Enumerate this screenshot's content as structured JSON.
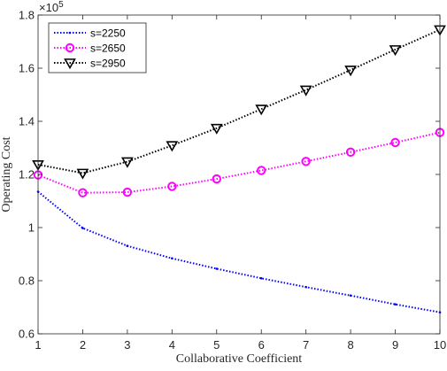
{
  "chart_data": {
    "type": "line",
    "xlabel": "Collaborative Coefficient",
    "ylabel": "Operating Cost",
    "exponent_base": "10",
    "exponent_power": "5",
    "x": [
      1,
      2,
      3,
      4,
      5,
      6,
      7,
      8,
      9,
      10
    ],
    "xlim": [
      1,
      10
    ],
    "ylim": [
      0.6,
      1.8
    ],
    "xticks": [
      "1",
      "2",
      "3",
      "4",
      "5",
      "6",
      "7",
      "8",
      "9",
      "10"
    ],
    "yticks": [
      "0.6",
      "0.8",
      "1",
      "1.2",
      "1.4",
      "1.6",
      "1.8"
    ],
    "grid": false,
    "legend_position": "top-left",
    "series": [
      {
        "name": "s=2250",
        "color": "#0000ff",
        "marker": "point",
        "values": [
          1.135,
          0.998,
          0.931,
          0.884,
          0.845,
          0.809,
          0.776,
          0.744,
          0.711,
          0.681
        ]
      },
      {
        "name": "s=2650",
        "color": "#ff00ff",
        "marker": "circle",
        "values": [
          1.198,
          1.131,
          1.133,
          1.155,
          1.183,
          1.215,
          1.249,
          1.284,
          1.32,
          1.358
        ]
      },
      {
        "name": "s=2950",
        "color": "#000000",
        "marker": "triangle-down",
        "values": [
          1.237,
          1.205,
          1.248,
          1.309,
          1.374,
          1.446,
          1.518,
          1.593,
          1.67,
          1.745
        ]
      }
    ]
  }
}
